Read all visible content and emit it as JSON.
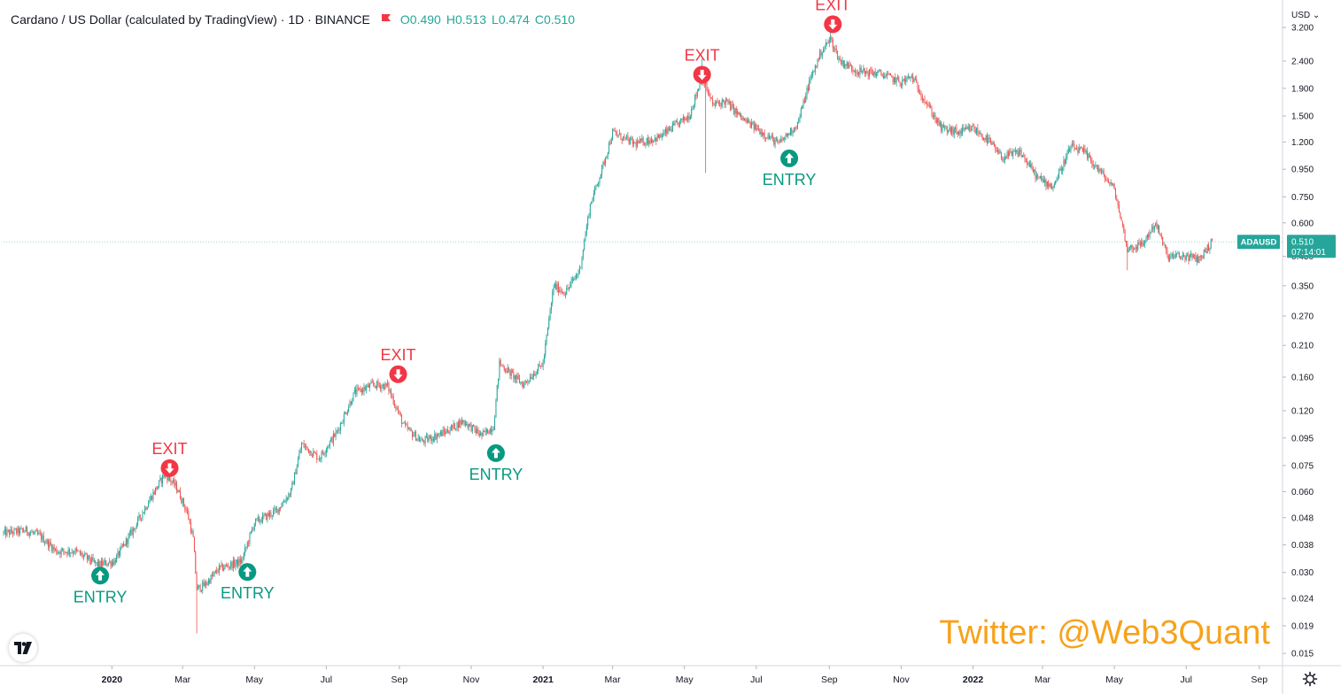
{
  "header": {
    "title": "Cardano / US Dollar (calculated by TradingView) · 1D · BINANCE",
    "open_label": "O",
    "open": "0.490",
    "high_label": "H",
    "high": "0.513",
    "low_label": "L",
    "low": "0.474",
    "close_label": "C",
    "close": "0.510",
    "flag_icon": "flag-icon"
  },
  "axis": {
    "currency": "USD"
  },
  "price_tag": {
    "symbol": "ADAUSD",
    "price": "0.510",
    "countdown": "07:14:01"
  },
  "watermark": "Twitter: @Web3Quant",
  "colors": {
    "up": "#26a69a",
    "down": "#ef5350",
    "exit": "#f23645",
    "entry": "#089981",
    "watermark": "#f7a21b",
    "grid": "#e0e3eb",
    "tag": "#26a69a"
  },
  "chart_data": {
    "type": "candlestick",
    "y_scale": "log",
    "ylim": [
      0.0135,
      3.9
    ],
    "xlim": [
      "2019-10-01",
      "2022-09-20"
    ],
    "y_ticks": [
      "3.200",
      "2.400",
      "1.900",
      "1.500",
      "1.200",
      "0.950",
      "0.750",
      "0.600",
      "0.450",
      "0.350",
      "0.270",
      "0.210",
      "0.160",
      "0.120",
      "0.095",
      "0.075",
      "0.060",
      "0.048",
      "0.038",
      "0.030",
      "0.024",
      "0.019",
      "0.015"
    ],
    "x_ticks": [
      {
        "date": "2020-01-01",
        "label": "2020",
        "bold": true
      },
      {
        "date": "2020-03-01",
        "label": "Mar"
      },
      {
        "date": "2020-05-01",
        "label": "May"
      },
      {
        "date": "2020-07-01",
        "label": "Jul"
      },
      {
        "date": "2020-09-01",
        "label": "Sep"
      },
      {
        "date": "2020-11-01",
        "label": "Nov"
      },
      {
        "date": "2021-01-01",
        "label": "2021",
        "bold": true
      },
      {
        "date": "2021-03-01",
        "label": "Mar"
      },
      {
        "date": "2021-05-01",
        "label": "May"
      },
      {
        "date": "2021-07-01",
        "label": "Jul"
      },
      {
        "date": "2021-09-01",
        "label": "Sep"
      },
      {
        "date": "2021-11-01",
        "label": "Nov"
      },
      {
        "date": "2022-01-01",
        "label": "2022",
        "bold": true
      },
      {
        "date": "2022-03-01",
        "label": "Mar"
      },
      {
        "date": "2022-05-01",
        "label": "May"
      },
      {
        "date": "2022-07-01",
        "label": "Jul"
      },
      {
        "date": "2022-09-01",
        "label": "Sep"
      }
    ],
    "price_path": [
      [
        "2019-10-01",
        0.042
      ],
      [
        "2019-10-20",
        0.043
      ],
      [
        "2019-11-01",
        0.041
      ],
      [
        "2019-11-15",
        0.036
      ],
      [
        "2019-12-01",
        0.036
      ],
      [
        "2019-12-20",
        0.032
      ],
      [
        "2020-01-03",
        0.033
      ],
      [
        "2020-01-20",
        0.044
      ],
      [
        "2020-02-01",
        0.055
      ],
      [
        "2020-02-15",
        0.07
      ],
      [
        "2020-02-25",
        0.062
      ],
      [
        "2020-03-05",
        0.05
      ],
      [
        "2020-03-10",
        0.04
      ],
      [
        "2020-03-13",
        0.026
      ],
      [
        "2020-03-20",
        0.027
      ],
      [
        "2020-04-01",
        0.031
      ],
      [
        "2020-04-20",
        0.033
      ],
      [
        "2020-05-01",
        0.046
      ],
      [
        "2020-05-20",
        0.051
      ],
      [
        "2020-06-01",
        0.06
      ],
      [
        "2020-06-10",
        0.09
      ],
      [
        "2020-06-25",
        0.08
      ],
      [
        "2020-07-10",
        0.1
      ],
      [
        "2020-07-25",
        0.14
      ],
      [
        "2020-08-10",
        0.15
      ],
      [
        "2020-08-22",
        0.148
      ],
      [
        "2020-09-05",
        0.105
      ],
      [
        "2020-09-20",
        0.092
      ],
      [
        "2020-10-10",
        0.1
      ],
      [
        "2020-10-25",
        0.11
      ],
      [
        "2020-11-10",
        0.097
      ],
      [
        "2020-11-20",
        0.105
      ],
      [
        "2020-11-25",
        0.18
      ],
      [
        "2020-12-15",
        0.15
      ],
      [
        "2021-01-01",
        0.18
      ],
      [
        "2021-01-10",
        0.35
      ],
      [
        "2021-01-20",
        0.33
      ],
      [
        "2021-02-01",
        0.4
      ],
      [
        "2021-02-10",
        0.7
      ],
      [
        "2021-02-20",
        0.95
      ],
      [
        "2021-03-01",
        1.3
      ],
      [
        "2021-03-20",
        1.18
      ],
      [
        "2021-04-10",
        1.25
      ],
      [
        "2021-04-20",
        1.35
      ],
      [
        "2021-05-05",
        1.5
      ],
      [
        "2021-05-16",
        2.1
      ],
      [
        "2021-05-25",
        1.65
      ],
      [
        "2021-06-05",
        1.7
      ],
      [
        "2021-06-20",
        1.45
      ],
      [
        "2021-07-01",
        1.35
      ],
      [
        "2021-07-20",
        1.18
      ],
      [
        "2021-08-05",
        1.4
      ],
      [
        "2021-08-15",
        2.0
      ],
      [
        "2021-08-25",
        2.6
      ],
      [
        "2021-09-02",
        2.9
      ],
      [
        "2021-09-10",
        2.4
      ],
      [
        "2021-09-25",
        2.2
      ],
      [
        "2021-10-15",
        2.15
      ],
      [
        "2021-11-01",
        2.0
      ],
      [
        "2021-11-10",
        2.1
      ],
      [
        "2021-11-25",
        1.6
      ],
      [
        "2021-12-05",
        1.35
      ],
      [
        "2021-12-20",
        1.3
      ],
      [
        "2022-01-01",
        1.35
      ],
      [
        "2022-01-15",
        1.2
      ],
      [
        "2022-01-25",
        1.05
      ],
      [
        "2022-02-10",
        1.1
      ],
      [
        "2022-02-25",
        0.88
      ],
      [
        "2022-03-10",
        0.82
      ],
      [
        "2022-03-25",
        1.15
      ],
      [
        "2022-04-05",
        1.1
      ],
      [
        "2022-04-20",
        0.92
      ],
      [
        "2022-05-01",
        0.8
      ],
      [
        "2022-05-12",
        0.48
      ],
      [
        "2022-05-25",
        0.5
      ],
      [
        "2022-06-05",
        0.6
      ],
      [
        "2022-06-15",
        0.45
      ],
      [
        "2022-07-01",
        0.45
      ],
      [
        "2022-07-12",
        0.44
      ],
      [
        "2022-07-23",
        0.51
      ]
    ],
    "wick_spikes": [
      {
        "date": "2020-03-13",
        "low": 0.0178
      },
      {
        "date": "2021-05-19",
        "low": 0.92
      },
      {
        "date": "2021-05-16",
        "high": 2.45
      },
      {
        "date": "2021-09-02",
        "high": 3.1
      },
      {
        "date": "2022-05-12",
        "low": 0.4
      }
    ],
    "signals": [
      {
        "type": "entry",
        "label": "ENTRY",
        "date": "2019-12-22",
        "price": 0.0315
      },
      {
        "type": "exit",
        "label": "EXIT",
        "date": "2020-02-19",
        "price": 0.068
      },
      {
        "type": "entry",
        "label": "ENTRY",
        "date": "2020-04-25",
        "price": 0.0325
      },
      {
        "type": "exit",
        "label": "EXIT",
        "date": "2020-08-31",
        "price": 0.152
      },
      {
        "type": "entry",
        "label": "ENTRY",
        "date": "2020-11-22",
        "price": 0.09
      },
      {
        "type": "exit",
        "label": "EXIT",
        "date": "2021-05-16",
        "price": 1.98
      },
      {
        "type": "entry",
        "label": "ENTRY",
        "date": "2021-07-29",
        "price": 1.125
      },
      {
        "type": "exit",
        "label": "EXIT",
        "date": "2021-09-04",
        "price": 3.05
      }
    ]
  }
}
